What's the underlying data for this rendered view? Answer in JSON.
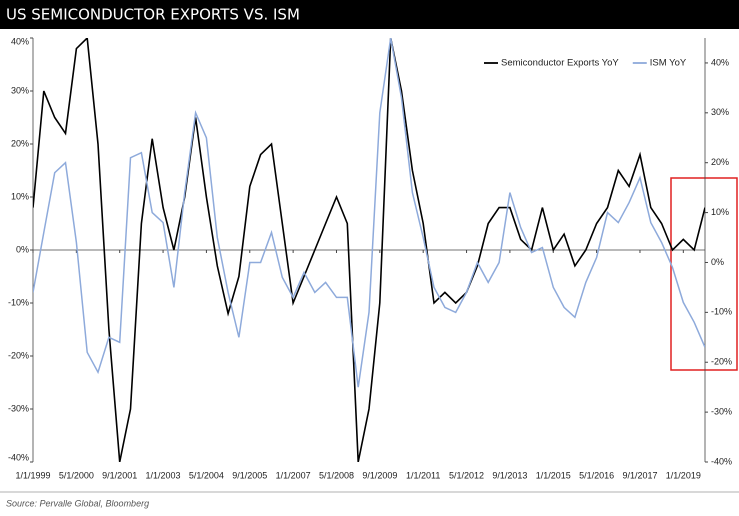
{
  "chart_data": {
    "type": "line",
    "title": "US SEMICONDUCTOR EXPORTS VS. ISM",
    "source": "Source: Pervalle Global, Bloomberg",
    "categories": [
      "1/1/1999",
      null,
      null,
      null,
      "5/1/2000",
      null,
      null,
      null,
      "9/1/2001",
      null,
      null,
      null,
      "1/1/2003",
      null,
      null,
      null,
      "5/1/2004",
      null,
      null,
      null,
      "9/1/2005",
      null,
      null,
      null,
      "1/1/2007",
      null,
      null,
      null,
      "5/1/2008",
      null,
      null,
      null,
      "9/1/2009",
      null,
      null,
      null,
      "1/1/2011",
      null,
      null,
      null,
      "5/1/2012",
      null,
      null,
      null,
      "9/1/2013",
      null,
      null,
      null,
      "1/1/2015",
      null,
      null,
      null,
      "5/1/2016",
      null,
      null,
      null,
      "9/1/2017",
      null,
      null,
      null,
      "1/1/2019",
      null,
      null
    ],
    "series": [
      {
        "name": "Semiconductor Exports YoY",
        "color": "#000000",
        "axis": "y",
        "values": [
          8,
          30,
          25,
          22,
          38,
          40,
          20,
          -15,
          -40,
          -30,
          5,
          21,
          8,
          0,
          10,
          25,
          10,
          -3,
          -12,
          -5,
          12,
          18,
          20,
          5,
          -10,
          -5,
          0,
          5,
          10,
          5,
          -40,
          -30,
          -10,
          40,
          30,
          15,
          5,
          -10,
          -8,
          -10,
          -8,
          -3,
          5,
          8,
          8,
          2,
          0,
          8,
          0,
          3,
          -3,
          0,
          5,
          8,
          15,
          12,
          18,
          8,
          5,
          0,
          2,
          0,
          8
        ]
      },
      {
        "name": "ISM YoY",
        "color": "#8eaadb",
        "axis": "y2",
        "values": [
          -6,
          6,
          18,
          20,
          4,
          -18,
          -22,
          -15,
          -16,
          21,
          22,
          10,
          8,
          -5,
          14,
          30,
          25,
          5,
          -6,
          -15,
          0,
          0,
          6,
          -3,
          -7,
          -2,
          -6,
          -4,
          -7,
          -7,
          -25,
          -10,
          30,
          45,
          33,
          14,
          5,
          -5,
          -9,
          -10,
          -6,
          0,
          -4,
          0,
          14,
          7,
          2,
          3,
          -5,
          -9,
          -11,
          -4,
          1,
          10,
          8,
          12,
          17,
          8,
          4,
          -1,
          -8,
          -12,
          -17
        ]
      }
    ],
    "ylim": [
      -40,
      40
    ],
    "yticks": [
      {
        "value": -40,
        "label": "-40%"
      },
      {
        "value": -30,
        "label": "-30%"
      },
      {
        "value": -20,
        "label": "-20%"
      },
      {
        "value": -10,
        "label": "-10%"
      },
      {
        "value": 0,
        "label": "0%"
      },
      {
        "value": 10,
        "label": "10%"
      },
      {
        "value": 20,
        "label": "20%"
      },
      {
        "value": 30,
        "label": "30%"
      },
      {
        "value": 40,
        "label": "40%"
      }
    ],
    "y2lim": [
      -40,
      45
    ],
    "y2ticks": [
      {
        "value": -40,
        "label": "-40%"
      },
      {
        "value": -30,
        "label": "-30%"
      },
      {
        "value": -20,
        "label": "-20%"
      },
      {
        "value": -10,
        "label": "-10%"
      },
      {
        "value": 0,
        "label": "0%"
      },
      {
        "value": 10,
        "label": "10%"
      },
      {
        "value": 20,
        "label": "20%"
      },
      {
        "value": 30,
        "label": "30%"
      },
      {
        "value": 40,
        "label": "40%"
      }
    ],
    "legend": "upper right"
  }
}
